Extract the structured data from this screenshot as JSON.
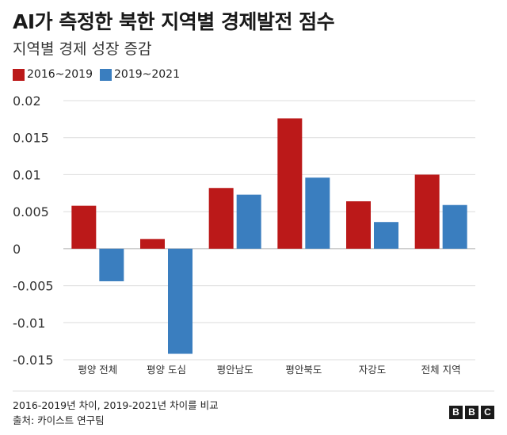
{
  "header": {
    "title": "AI가 측정한 북한 지역별 경제발전 점수",
    "subtitle": "지역별 경제 성장 증감"
  },
  "footer": {
    "note": "2016-2019년 차이, 2019-2021년 차이를 비교",
    "source": "출처: 카이스트 연구팀"
  },
  "brand": {
    "logo_letters": [
      "B",
      "B",
      "C"
    ]
  },
  "colors": {
    "series_2016_2019": "#bb1919",
    "series_2019_2021": "#3a7ebf",
    "gridline": "#dcdcdc",
    "zero_line": "#b0b0b0"
  },
  "chart_data": {
    "type": "bar",
    "title": "AI가 측정한 북한 지역별 경제발전 점수",
    "subtitle": "지역별 경제 성장 증감",
    "xlabel": "",
    "ylabel": "",
    "categories": [
      "평양 전체",
      "평양 도심",
      "평안남도",
      "평안북도",
      "자강도",
      "전체 지역"
    ],
    "series": [
      {
        "name": "2016~2019",
        "color": "#bb1919",
        "values": [
          0.0058,
          0.0013,
          0.0082,
          0.0176,
          0.0064,
          0.01
        ]
      },
      {
        "name": "2019~2021",
        "color": "#3a7ebf",
        "values": [
          -0.0044,
          -0.0142,
          0.0073,
          0.0096,
          0.0036,
          0.0059
        ]
      }
    ],
    "ylim": [
      -0.015,
      0.02
    ],
    "yticks": [
      0.02,
      0.015,
      0.01,
      0.005,
      0,
      -0.005,
      -0.01,
      -0.015
    ],
    "ytick_labels": [
      "0.02",
      "0.015",
      "0.01",
      "0.005",
      "0",
      "-0.005",
      "-0.01",
      "-0.015"
    ],
    "grid": true,
    "legend_position": "top-left"
  }
}
